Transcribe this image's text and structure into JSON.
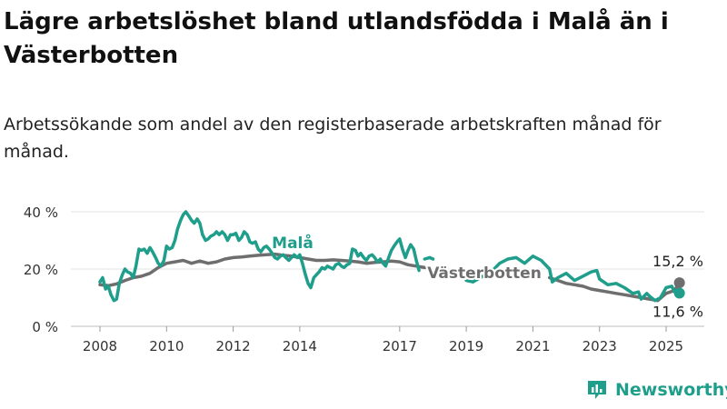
{
  "title": "Lägre arbetslöshet bland utlandsfödda i Malå än i Västerbotten",
  "subtitle": "Arbetssökande som andel av den registerbaserade arbetskraften månad för månad.",
  "brand": {
    "name": "Newsworthy",
    "icon": "newsworthy-logo-icon",
    "color": "#1f9e8b"
  },
  "chart_data": {
    "type": "line",
    "unit": "%",
    "xlabel": "",
    "ylabel": "",
    "ylim": [
      0,
      40
    ],
    "xlim": [
      2007.9,
      2025.6
    ],
    "yticks": [
      0,
      20,
      40
    ],
    "ytick_labels": [
      "0 %",
      "20 %",
      "40 %"
    ],
    "xticks": [
      2008,
      2010,
      2012,
      2014,
      2017,
      2019,
      2021,
      2023,
      2025
    ],
    "xtick_labels": [
      "2008",
      "2010",
      "2012",
      "2014",
      "2017",
      "2019",
      "2021",
      "2023",
      "2025"
    ],
    "grid": true,
    "legend": "inline",
    "series": [
      {
        "name": "Västerbotten",
        "color": "#6e6e6e",
        "end_label": "15,2 %",
        "points": [
          [
            2008.0,
            14.5
          ],
          [
            2008.25,
            14.2
          ],
          [
            2008.5,
            14.8
          ],
          [
            2008.75,
            16.0
          ],
          [
            2009.0,
            17.0
          ],
          [
            2009.25,
            17.5
          ],
          [
            2009.5,
            18.5
          ],
          [
            2009.75,
            20.5
          ],
          [
            2010.0,
            22.0
          ],
          [
            2010.25,
            22.5
          ],
          [
            2010.5,
            23.0
          ],
          [
            2010.75,
            22.0
          ],
          [
            2011.0,
            22.8
          ],
          [
            2011.25,
            22.0
          ],
          [
            2011.5,
            22.5
          ],
          [
            2011.75,
            23.5
          ],
          [
            2012.0,
            24.0
          ],
          [
            2012.25,
            24.2
          ],
          [
            2012.5,
            24.5
          ],
          [
            2012.75,
            24.8
          ],
          [
            2013.0,
            25.0
          ],
          [
            2013.25,
            25.2
          ],
          [
            2013.5,
            24.8
          ],
          [
            2013.75,
            24.5
          ],
          [
            2014.0,
            24.0
          ],
          [
            2014.25,
            23.5
          ],
          [
            2014.5,
            23.0
          ],
          [
            2014.75,
            23.0
          ],
          [
            2015.0,
            23.2
          ],
          [
            2015.25,
            23.0
          ],
          [
            2015.5,
            22.8
          ],
          [
            2015.75,
            22.5
          ],
          [
            2016.0,
            22.0
          ],
          [
            2016.25,
            22.3
          ],
          [
            2016.5,
            22.5
          ],
          [
            2016.75,
            22.8
          ],
          [
            2017.0,
            22.5
          ],
          [
            2017.25,
            21.5
          ],
          [
            2017.5,
            21.0
          ],
          [
            2017.75,
            20.5
          ]
        ],
        "points_after_label": [
          [
            2021.5,
            17.0
          ],
          [
            2021.75,
            16.0
          ],
          [
            2022.0,
            15.0
          ],
          [
            2022.25,
            14.5
          ],
          [
            2022.5,
            14.0
          ],
          [
            2022.75,
            13.0
          ],
          [
            2023.0,
            12.5
          ],
          [
            2023.25,
            12.0
          ],
          [
            2023.5,
            11.5
          ],
          [
            2023.75,
            11.0
          ],
          [
            2024.0,
            10.5
          ],
          [
            2024.25,
            10.0
          ],
          [
            2024.5,
            9.5
          ],
          [
            2024.75,
            9.0
          ],
          [
            2025.0,
            11.5
          ],
          [
            2025.25,
            12.5
          ],
          [
            2025.4,
            15.2
          ]
        ]
      },
      {
        "name": "Malå",
        "color": "#1f9e8b",
        "end_label": "11,6 %",
        "points": [
          [
            2008.0,
            15.5
          ],
          [
            2008.08,
            17.0
          ],
          [
            2008.17,
            13.0
          ],
          [
            2008.25,
            14.0
          ],
          [
            2008.33,
            11.0
          ],
          [
            2008.42,
            9.0
          ],
          [
            2008.5,
            9.5
          ],
          [
            2008.58,
            15.0
          ],
          [
            2008.67,
            18.0
          ],
          [
            2008.75,
            20.0
          ],
          [
            2008.83,
            19.0
          ],
          [
            2008.92,
            18.5
          ],
          [
            2009.0,
            17.0
          ],
          [
            2009.08,
            21.0
          ],
          [
            2009.17,
            27.0
          ],
          [
            2009.25,
            26.5
          ],
          [
            2009.33,
            27.0
          ],
          [
            2009.42,
            25.5
          ],
          [
            2009.5,
            27.5
          ],
          [
            2009.58,
            26.0
          ],
          [
            2009.67,
            24.0
          ],
          [
            2009.75,
            22.0
          ],
          [
            2009.83,
            21.0
          ],
          [
            2009.92,
            23.0
          ],
          [
            2010.0,
            28.0
          ],
          [
            2010.08,
            27.0
          ],
          [
            2010.17,
            27.5
          ],
          [
            2010.25,
            30.0
          ],
          [
            2010.33,
            34.0
          ],
          [
            2010.42,
            37.0
          ],
          [
            2010.5,
            39.0
          ],
          [
            2010.58,
            40.0
          ],
          [
            2010.67,
            38.5
          ],
          [
            2010.75,
            37.0
          ],
          [
            2010.83,
            36.0
          ],
          [
            2010.92,
            37.5
          ],
          [
            2011.0,
            36.0
          ],
          [
            2011.08,
            32.0
          ],
          [
            2011.17,
            30.0
          ],
          [
            2011.25,
            30.5
          ],
          [
            2011.33,
            31.5
          ],
          [
            2011.42,
            32.0
          ],
          [
            2011.5,
            33.0
          ],
          [
            2011.58,
            32.0
          ],
          [
            2011.67,
            33.0
          ],
          [
            2011.75,
            32.0
          ],
          [
            2011.83,
            30.0
          ],
          [
            2011.92,
            32.0
          ],
          [
            2012.0,
            32.0
          ],
          [
            2012.08,
            32.5
          ],
          [
            2012.17,
            30.0
          ],
          [
            2012.25,
            31.0
          ],
          [
            2012.33,
            33.0
          ],
          [
            2012.42,
            32.0
          ],
          [
            2012.5,
            29.5
          ],
          [
            2012.58,
            29.0
          ],
          [
            2012.67,
            29.5
          ],
          [
            2012.75,
            27.0
          ],
          [
            2012.83,
            26.0
          ],
          [
            2012.92,
            27.5
          ],
          [
            2013.0,
            28.0
          ],
          [
            2013.08,
            27.0
          ],
          [
            2013.17,
            25.5
          ],
          [
            2013.25,
            24.0
          ],
          [
            2013.33,
            23.5
          ],
          [
            2013.42,
            24.5
          ],
          [
            2013.5,
            25.0
          ],
          [
            2013.58,
            24.0
          ],
          [
            2013.67,
            23.0
          ],
          [
            2013.75,
            24.0
          ],
          [
            2013.83,
            25.0
          ],
          [
            2013.92,
            24.0
          ],
          [
            2014.0,
            25.0
          ],
          [
            2014.08,
            22.0
          ],
          [
            2014.17,
            18.0
          ],
          [
            2014.25,
            15.0
          ],
          [
            2014.33,
            13.5
          ],
          [
            2014.42,
            17.0
          ],
          [
            2014.5,
            18.0
          ],
          [
            2014.58,
            19.0
          ],
          [
            2014.67,
            20.5
          ],
          [
            2014.75,
            20.0
          ],
          [
            2014.83,
            21.0
          ],
          [
            2014.92,
            20.5
          ],
          [
            2015.0,
            20.0
          ],
          [
            2015.08,
            21.5
          ],
          [
            2015.17,
            22.0
          ],
          [
            2015.25,
            21.0
          ],
          [
            2015.33,
            20.5
          ],
          [
            2015.42,
            21.5
          ],
          [
            2015.5,
            22.0
          ],
          [
            2015.58,
            27.0
          ],
          [
            2015.67,
            26.5
          ],
          [
            2015.75,
            24.5
          ],
          [
            2015.83,
            25.5
          ],
          [
            2015.92,
            24.0
          ],
          [
            2016.0,
            23.0
          ],
          [
            2016.08,
            24.5
          ],
          [
            2016.17,
            25.0
          ],
          [
            2016.25,
            24.0
          ],
          [
            2016.33,
            22.5
          ],
          [
            2016.42,
            23.5
          ],
          [
            2016.5,
            22.0
          ],
          [
            2016.58,
            21.0
          ],
          [
            2016.67,
            24.0
          ],
          [
            2016.75,
            26.5
          ],
          [
            2016.83,
            28.0
          ],
          [
            2016.92,
            29.5
          ],
          [
            2017.0,
            30.5
          ],
          [
            2017.08,
            27.0
          ],
          [
            2017.17,
            24.0
          ],
          [
            2017.25,
            26.5
          ],
          [
            2017.33,
            28.5
          ],
          [
            2017.42,
            27.0
          ],
          [
            2017.5,
            23.0
          ],
          [
            2017.58,
            19.5
          ]
        ],
        "points_mid": [
          [
            2017.75,
            23.5
          ],
          [
            2017.9,
            24.0
          ],
          [
            2018.0,
            23.5
          ]
        ],
        "points_after_label": [
          [
            2019.0,
            16.0
          ],
          [
            2019.2,
            15.5
          ],
          [
            2019.5,
            17.5
          ],
          [
            2019.75,
            19.0
          ],
          [
            2020.0,
            22.0
          ],
          [
            2020.25,
            23.5
          ],
          [
            2020.5,
            24.0
          ],
          [
            2020.75,
            22.0
          ],
          [
            2021.0,
            24.5
          ],
          [
            2021.25,
            23.0
          ],
          [
            2021.5,
            20.0
          ],
          [
            2021.58,
            15.5
          ],
          [
            2021.75,
            17.0
          ],
          [
            2022.0,
            18.5
          ],
          [
            2022.25,
            16.0
          ],
          [
            2022.5,
            17.5
          ],
          [
            2022.75,
            19.0
          ],
          [
            2022.92,
            19.5
          ],
          [
            2023.0,
            16.5
          ],
          [
            2023.25,
            14.5
          ],
          [
            2023.5,
            15.0
          ],
          [
            2023.75,
            13.5
          ],
          [
            2024.0,
            11.5
          ],
          [
            2024.17,
            12.0
          ],
          [
            2024.25,
            9.5
          ],
          [
            2024.42,
            11.5
          ],
          [
            2024.5,
            10.5
          ],
          [
            2024.67,
            9.0
          ],
          [
            2024.83,
            10.0
          ],
          [
            2025.0,
            13.5
          ],
          [
            2025.17,
            14.0
          ],
          [
            2025.25,
            12.0
          ],
          [
            2025.4,
            11.6
          ]
        ]
      }
    ]
  }
}
